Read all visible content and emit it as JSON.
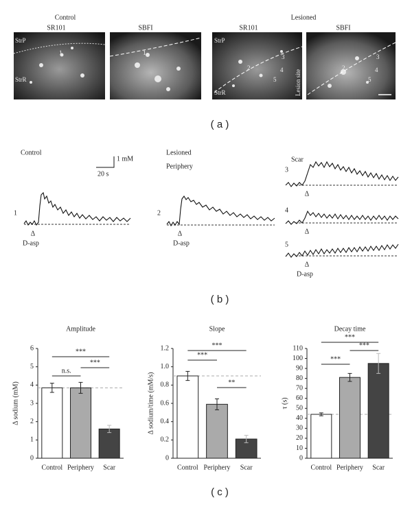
{
  "panel_a": {
    "groups": [
      "Control",
      "Lesioned"
    ],
    "image_titles": [
      "SR101",
      "SBFI",
      "SR101",
      "SBFI"
    ],
    "control_labels": [
      "StrP",
      "StrR",
      "1",
      "1"
    ],
    "lesioned_labels": [
      "StrP",
      "StrR",
      "2",
      "3",
      "4",
      "5",
      "Lesion site",
      "2",
      "3",
      "4",
      "5"
    ],
    "label": "( a )"
  },
  "panel_b": {
    "control": "Control",
    "scale_y": "1 mM",
    "scale_x": "20 s",
    "trace_1": "1",
    "stim_1": "Δ",
    "drug_1": "D-asp",
    "lesioned": "Lesioned",
    "periphery": "Periphery",
    "trace_2": "2",
    "stim_2": "Δ",
    "drug_2": "D-asp",
    "scar": "Scar",
    "trace_3": "3",
    "stim_3": "Δ",
    "trace_4": "4",
    "stim_4": "Δ",
    "trace_5": "5",
    "stim_5": "Δ",
    "drug_5": "D-asp",
    "label": "( b )"
  },
  "chart_data": [
    {
      "type": "bar",
      "title": "Amplitude",
      "ylabel": "Δ sodium (mM)",
      "categories": [
        "Control",
        "Periphery",
        "Scar"
      ],
      "values": [
        3.85,
        3.85,
        1.6
      ],
      "errors": [
        0.25,
        0.3,
        0.2
      ],
      "colors": [
        "#ffffff",
        "#aaaaaa",
        "#444444"
      ],
      "reference": 3.85,
      "ylim": [
        0,
        6
      ],
      "yticks": [
        0,
        1,
        2,
        3,
        4,
        5,
        6
      ],
      "annotations": [
        "n.s.",
        "***",
        "***"
      ]
    },
    {
      "type": "bar",
      "title": "Slope",
      "ylabel": "Δ sodium/time (mM/s)",
      "categories": [
        "Control",
        "Periphery",
        "Scar"
      ],
      "values": [
        0.9,
        0.59,
        0.21
      ],
      "errors": [
        0.05,
        0.06,
        0.04
      ],
      "colors": [
        "#ffffff",
        "#aaaaaa",
        "#444444"
      ],
      "reference": 0.9,
      "ylim": [
        0,
        1.2
      ],
      "yticks": [
        0,
        0.2,
        0.4,
        0.6,
        0.8,
        {
          "value": 1,
          "label": "1.0"
        },
        1.2
      ],
      "annotations": [
        "***",
        "***",
        "**"
      ]
    },
    {
      "type": "bar",
      "title": "Decay time",
      "ylabel": "τ (s)",
      "categories": [
        "Control",
        "Periphery",
        "Scar"
      ],
      "values": [
        44,
        81,
        95
      ],
      "errors": [
        1.5,
        4,
        10
      ],
      "colors": [
        "#ffffff",
        "#aaaaaa",
        "#444444"
      ],
      "reference": 44,
      "ylim": [
        0,
        110
      ],
      "yticks": [
        0,
        10,
        20,
        30,
        40,
        50,
        60,
        70,
        80,
        90,
        100,
        110
      ],
      "annotations": [
        "***",
        "***",
        "***"
      ]
    }
  ],
  "panel_c": {
    "label": "( c )"
  }
}
